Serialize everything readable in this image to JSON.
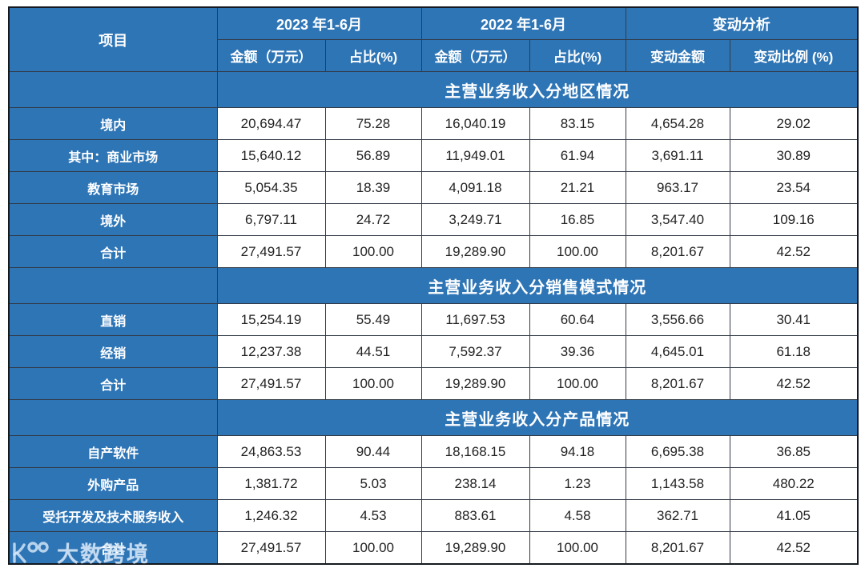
{
  "colors": {
    "accent_blue": "#2E75B6",
    "outer_border": "#14191f",
    "cell_border": "#323b46",
    "value_text": "#232323",
    "watermark": "#d7e8f8"
  },
  "table": {
    "item_header": "项目",
    "col_groups": [
      {
        "label": "2023 年1-6月",
        "sub": [
          "金额（万元）",
          "占比(%)"
        ]
      },
      {
        "label": "2022 年1-6月",
        "sub": [
          "金额（万元）",
          "占比(%)"
        ]
      },
      {
        "label": "变动分析",
        "sub": [
          "变动金额",
          "变动比例 (%)"
        ]
      }
    ],
    "sections": [
      {
        "title": "主营业务收入分地区情况",
        "rows": [
          {
            "label": "境内",
            "values": [
              "20,694.47",
              "75.28",
              "16,040.19",
              "83.15",
              "4,654.28",
              "29.02"
            ]
          },
          {
            "label": "其中：商业市场",
            "values": [
              "15,640.12",
              "56.89",
              "11,949.01",
              "61.94",
              "3,691.11",
              "30.89"
            ]
          },
          {
            "label": "教育市场",
            "values": [
              "5,054.35",
              "18.39",
              "4,091.18",
              "21.21",
              "963.17",
              "23.54"
            ]
          },
          {
            "label": "境外",
            "values": [
              "6,797.11",
              "24.72",
              "3,249.71",
              "16.85",
              "3,547.40",
              "109.16"
            ]
          },
          {
            "label": "合计",
            "values": [
              "27,491.57",
              "100.00",
              "19,289.90",
              "100.00",
              "8,201.67",
              "42.52"
            ]
          }
        ]
      },
      {
        "title": "主营业务收入分销售模式情况",
        "rows": [
          {
            "label": "直销",
            "values": [
              "15,254.19",
              "55.49",
              "11,697.53",
              "60.64",
              "3,556.66",
              "30.41"
            ]
          },
          {
            "label": "经销",
            "values": [
              "12,237.38",
              "44.51",
              "7,592.37",
              "39.36",
              "4,645.01",
              "61.18"
            ]
          },
          {
            "label": "合计",
            "values": [
              "27,491.57",
              "100.00",
              "19,289.90",
              "100.00",
              "8,201.67",
              "42.52"
            ]
          }
        ]
      },
      {
        "title": "主营业务收入分产品情况",
        "rows": [
          {
            "label": "自产软件",
            "values": [
              "24,863.53",
              "90.44",
              "18,168.15",
              "94.18",
              "6,695.38",
              "36.85"
            ]
          },
          {
            "label": "外购产品",
            "values": [
              "1,381.72",
              "5.03",
              "238.14",
              "1.23",
              "1,143.58",
              "480.22"
            ]
          },
          {
            "label": "受托开发及技术服务收入",
            "values": [
              "1,246.32",
              "4.53",
              "883.61",
              "4.58",
              "362.71",
              "41.05"
            ]
          },
          {
            "label": "合计",
            "values": [
              "27,491.57",
              "100.00",
              "19,289.90",
              "100.00",
              "8,201.67",
              "42.52"
            ]
          }
        ]
      }
    ]
  },
  "watermark": {
    "logo_icon": "k100-logo-icon",
    "text": "大数跨境"
  }
}
